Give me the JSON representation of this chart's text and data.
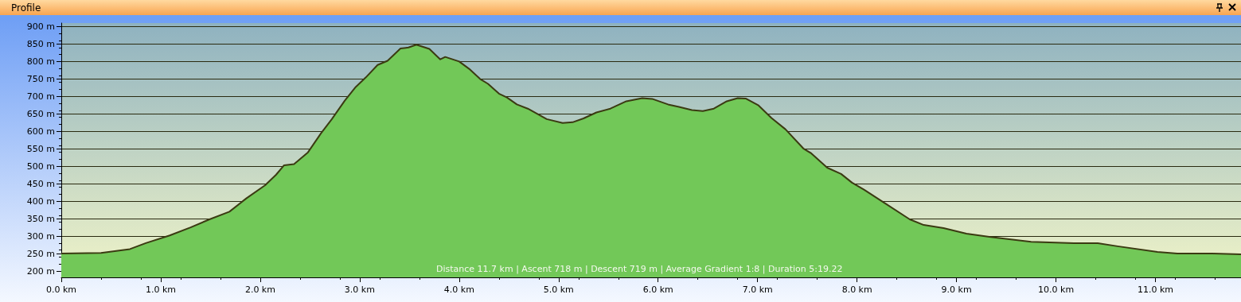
{
  "chart_data": {
    "type": "area",
    "title": "Profile",
    "annotations": [
      "Distance 11.7 km | Ascent 718 m | Descent 719 m | Average Gradient 1:8 | Duration 5:19.22"
    ],
    "x": [
      0,
      0.4,
      0.69,
      0.85,
      1.09,
      1.3,
      1.49,
      1.69,
      1.86,
      2.05,
      2.16,
      2.24,
      2.34,
      2.48,
      2.61,
      2.72,
      2.85,
      2.96,
      3.06,
      3.18,
      3.28,
      3.41,
      3.49,
      3.57,
      3.7,
      3.81,
      3.86,
      4.0,
      4.1,
      4.21,
      4.29,
      4.4,
      4.48,
      4.58,
      4.69,
      4.88,
      5.04,
      5.14,
      5.25,
      5.38,
      5.52,
      5.68,
      5.84,
      5.94,
      6.1,
      6.21,
      6.34,
      6.45,
      6.56,
      6.69,
      6.8,
      6.88,
      7.01,
      7.14,
      7.28,
      7.46,
      7.54,
      7.7,
      7.84,
      7.95,
      8.07,
      8.27,
      8.53,
      8.67,
      8.87,
      9.1,
      9.33,
      9.75,
      10.18,
      10.42,
      10.62,
      11.02,
      11.22,
      11.58,
      11.86
    ],
    "series": [
      {
        "color": "#72c858",
        "values": [
          250,
          252,
          263,
          280,
          302,
          325,
          348,
          370,
          408,
          446,
          476,
          503,
          506,
          540,
          594,
          635,
          688,
          727,
          754,
          790,
          802,
          837,
          840,
          848,
          836,
          806,
          813,
          800,
          779,
          750,
          736,
          708,
          697,
          677,
          665,
          635,
          624,
          626,
          637,
          654,
          665,
          686,
          695,
          693,
          677,
          670,
          661,
          658,
          665,
          686,
          695,
          694,
          674,
          638,
          606,
          551,
          537,
          496,
          478,
          453,
          433,
          396,
          348,
          332,
          323,
          307,
          298,
          284,
          280,
          280,
          271,
          255,
          250,
          250,
          248
        ]
      }
    ],
    "xlim": [
      0,
      11.86
    ],
    "ylim": [
      182,
      910
    ],
    "xticks": [
      {
        "value": 0,
        "label": "0.0 km"
      },
      {
        "value": 1,
        "label": "1.0 km"
      },
      {
        "value": 2,
        "label": "2.0 km"
      },
      {
        "value": 3,
        "label": "3.0 km"
      },
      {
        "value": 4,
        "label": "4.0 km"
      },
      {
        "value": 5,
        "label": "5.0 km"
      },
      {
        "value": 6,
        "label": "6.0 km"
      },
      {
        "value": 7,
        "label": "7.0 km"
      },
      {
        "value": 8,
        "label": "8.0 km"
      },
      {
        "value": 9,
        "label": "9.0 km"
      },
      {
        "value": 10,
        "label": "10.0 km"
      },
      {
        "value": 11,
        "label": "11.0 km"
      }
    ],
    "yticks": [
      {
        "value": 200,
        "label": "200 m"
      },
      {
        "value": 250,
        "label": "250 m"
      },
      {
        "value": 300,
        "label": "300 m"
      },
      {
        "value": 350,
        "label": "350 m"
      },
      {
        "value": 400,
        "label": "400 m"
      },
      {
        "value": 450,
        "label": "450 m"
      },
      {
        "value": 500,
        "label": "500 m"
      },
      {
        "value": 550,
        "label": "550 m"
      },
      {
        "value": 600,
        "label": "600 m"
      },
      {
        "value": 650,
        "label": "650 m"
      },
      {
        "value": 700,
        "label": "700 m"
      },
      {
        "value": 750,
        "label": "750 m"
      },
      {
        "value": 800,
        "label": "800 m"
      },
      {
        "value": 850,
        "label": "850 m"
      },
      {
        "value": 900,
        "label": "900 m"
      }
    ],
    "grid": "y",
    "marker": "none",
    "line_style": "solid"
  }
}
